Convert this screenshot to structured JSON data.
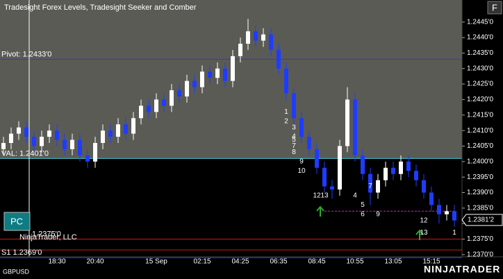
{
  "chart_data": {
    "type": "candlestick",
    "title": "Tradesight Forex Levels, Tradesight Seeker and Comber",
    "symbol": "GBPUSD",
    "categories": [
      null,
      null,
      null,
      null,
      null,
      null,
      null,
      "18:30",
      null,
      null,
      null,
      null,
      "20:40",
      null,
      null,
      null,
      null,
      null,
      null,
      null,
      "15 Sep",
      null,
      null,
      null,
      null,
      null,
      "02:15",
      null,
      null,
      null,
      null,
      "04:25",
      null,
      null,
      null,
      null,
      "06:35",
      null,
      null,
      null,
      null,
      "08:45",
      null,
      null,
      null,
      null,
      "10:55",
      null,
      null,
      null,
      null,
      "13:05",
      null,
      null,
      null,
      null,
      "15:15",
      null,
      null,
      null
    ],
    "open": [
      1.2404,
      1.2406,
      1.2409,
      1.2411,
      1.2408,
      1.2405,
      1.2408,
      1.241,
      1.2407,
      1.2404,
      1.2407,
      1.2402,
      1.24,
      1.2406,
      1.241,
      1.2408,
      1.2412,
      1.2409,
      1.2414,
      1.2418,
      1.2416,
      1.242,
      1.2418,
      1.2423,
      1.2421,
      1.2426,
      1.2424,
      1.2429,
      1.2427,
      1.243,
      1.2426,
      1.2434,
      1.2438,
      1.2442,
      1.2439,
      1.2441,
      1.2436,
      1.243,
      1.2422,
      1.2414,
      1.2408,
      1.2404,
      1.2398,
      1.2392,
      1.2391,
      1.2405,
      1.242,
      1.2402,
      1.2396,
      1.239,
      1.2394,
      1.2398,
      1.2396,
      1.24,
      1.2397,
      1.2394,
      1.239,
      1.2386,
      1.2383,
      1.2384
    ],
    "high": [
      1.2408,
      1.2411,
      1.2413,
      1.2413,
      1.241,
      1.241,
      1.2412,
      1.2412,
      1.2409,
      1.2409,
      1.2409,
      1.2404,
      1.2408,
      1.2412,
      1.2412,
      1.2414,
      1.2414,
      1.2416,
      1.242,
      1.242,
      1.2422,
      1.2422,
      1.2425,
      1.2425,
      1.2428,
      1.2428,
      1.2431,
      1.2431,
      1.2432,
      1.2432,
      1.2436,
      1.244,
      1.2446,
      1.2444,
      1.2443,
      1.2443,
      1.2438,
      1.2432,
      1.2424,
      1.2416,
      1.241,
      1.2406,
      1.24,
      1.2394,
      1.2407,
      1.2424,
      1.2422,
      1.2404,
      1.2398,
      1.2396,
      1.24,
      1.24,
      1.2402,
      1.2402,
      1.2399,
      1.2396,
      1.2392,
      1.2388,
      1.2386,
      1.2386
    ],
    "low": [
      1.2402,
      1.2404,
      1.2407,
      1.2406,
      1.2403,
      1.2403,
      1.2406,
      1.2405,
      1.2402,
      1.2402,
      1.24,
      1.2398,
      1.2398,
      1.2404,
      1.2406,
      1.2406,
      1.2407,
      1.2407,
      1.2412,
      1.2414,
      1.2414,
      1.2416,
      1.2416,
      1.2419,
      1.2419,
      1.2422,
      1.2422,
      1.2425,
      1.2425,
      1.2424,
      1.2424,
      1.2432,
      1.2436,
      1.2437,
      1.2437,
      1.2434,
      1.2428,
      1.242,
      1.2412,
      1.2406,
      1.2402,
      1.2396,
      1.239,
      1.2388,
      1.2389,
      1.2403,
      1.24,
      1.2394,
      1.2386,
      1.2388,
      1.2392,
      1.2394,
      1.2394,
      1.2395,
      1.2392,
      1.2388,
      1.2384,
      1.238,
      1.2381,
      1.2379
    ],
    "close": [
      1.2406,
      1.2409,
      1.2411,
      1.2408,
      1.2405,
      1.2408,
      1.241,
      1.2407,
      1.2404,
      1.2407,
      1.2402,
      1.24,
      1.2406,
      1.241,
      1.2408,
      1.2412,
      1.2409,
      1.2414,
      1.2418,
      1.2416,
      1.242,
      1.2418,
      1.2423,
      1.2421,
      1.2426,
      1.2424,
      1.2429,
      1.2427,
      1.243,
      1.2426,
      1.2434,
      1.2438,
      1.2442,
      1.2439,
      1.2441,
      1.2436,
      1.243,
      1.2422,
      1.2414,
      1.2408,
      1.2404,
      1.2398,
      1.2392,
      1.2391,
      1.2405,
      1.242,
      1.2402,
      1.2396,
      1.239,
      1.2394,
      1.2398,
      1.2396,
      1.24,
      1.2397,
      1.2394,
      1.239,
      1.2386,
      1.2383,
      1.2384,
      1.2381
    ],
    "up_color": "#ffffff",
    "down_color": "#1e3cff",
    "ylim": [
      1.24521,
      1.23693
    ],
    "yticks": [
      {
        "value": 1.2445,
        "label": "1.2445'0"
      },
      {
        "value": 1.244,
        "label": "1.2440'0"
      },
      {
        "value": 1.2435,
        "label": "1.2435'0"
      },
      {
        "value": 1.243,
        "label": "1.2430'0"
      },
      {
        "value": 1.2425,
        "label": "1.2425'0"
      },
      {
        "value": 1.242,
        "label": "1.2420'0"
      },
      {
        "value": 1.2415,
        "label": "1.2415'0"
      },
      {
        "value": 1.241,
        "label": "1.2410'0"
      },
      {
        "value": 1.2405,
        "label": "1.2405'0"
      },
      {
        "value": 1.24,
        "label": "1.2400'0"
      },
      {
        "value": 1.2395,
        "label": "1.2395'0"
      },
      {
        "value": 1.239,
        "label": "1.2390'0"
      },
      {
        "value": 1.2385,
        "label": "1.2385'0"
      },
      {
        "value": 1.238,
        "label": "1.2380'0"
      },
      {
        "value": 1.2375,
        "label": "1.2375'0"
      },
      {
        "value": 1.237,
        "label": "1.2370'0"
      }
    ],
    "value_area_low": 1.2401,
    "levels": [
      {
        "label": "Pivot: 1.2433'0",
        "value": 1.2433,
        "color": "#2a3cd0"
      },
      {
        "label": "VAL: 1.2401'0",
        "value": 1.2401,
        "color": "#40c8d8"
      },
      {
        "label": "1.2375'0",
        "value": 1.2375,
        "color": "#d01818"
      },
      {
        "value": 1.23715,
        "color": "#d01818"
      },
      {
        "label": "S1 1.2369'0",
        "value": 1.2369,
        "color": "#2a3cd0"
      }
    ],
    "last_price": {
      "value": 1.23812,
      "label": "1.2381'2"
    },
    "annotations": [
      {
        "text": "1",
        "x": 37,
        "y": 1.2416,
        "color": "#40e0e0"
      },
      {
        "text": "2",
        "x": 37,
        "y": 1.2413,
        "color": "#40e0e0"
      },
      {
        "text": "3",
        "x": 38,
        "y": 1.2411,
        "color": "#40e0e0"
      },
      {
        "text": "4",
        "x": 38,
        "y": 1.2408,
        "color": "#40e0e0"
      },
      {
        "text": "5",
        "x": 38,
        "y": 1.2407,
        "color": "#40e0e0"
      },
      {
        "text": "7",
        "x": 38,
        "y": 1.2405,
        "color": "#40e0e0"
      },
      {
        "text": "8",
        "x": 38,
        "y": 1.2403,
        "color": "#40e0e0"
      },
      {
        "text": "9",
        "x": 39,
        "y": 1.24,
        "color": "#40e0e0"
      },
      {
        "text": "10",
        "x": 39,
        "y": 1.2397,
        "color": "#40e0e0"
      },
      {
        "text": "12",
        "x": 41,
        "y": 1.2389,
        "color": "#40e0e0"
      },
      {
        "text": "13",
        "x": 42,
        "y": 1.2389,
        "color": "#40e0e0"
      },
      {
        "text": "4",
        "x": 46,
        "y": 1.2389,
        "color": "#40e0e0"
      },
      {
        "text": "5",
        "x": 47,
        "y": 1.2386,
        "color": "#40e0e0"
      },
      {
        "text": "6",
        "x": 47,
        "y": 1.2383,
        "color": "#40e0e0"
      },
      {
        "text": "7",
        "x": 48,
        "y": 1.2392,
        "color": "#40e0e0"
      },
      {
        "text": "9",
        "x": 49,
        "y": 1.2383,
        "color": "#40e0e0"
      },
      {
        "text": "12",
        "x": 55,
        "y": 1.2381,
        "color": "#40e0e0"
      },
      {
        "text": "13",
        "x": 55,
        "y": 1.2377,
        "color": "#40e0e0"
      },
      {
        "text": "1",
        "x": 59,
        "y": 1.2377,
        "color": "#e03030"
      }
    ],
    "dashed_level": {
      "value": 1.2384,
      "from": 42,
      "to": 59,
      "color": "#d020d0"
    }
  },
  "ui": {
    "f_button": "F",
    "pc_button": "PC",
    "copyright": "NinjaTrader, LLC",
    "watermark": "NINJATRADER"
  }
}
